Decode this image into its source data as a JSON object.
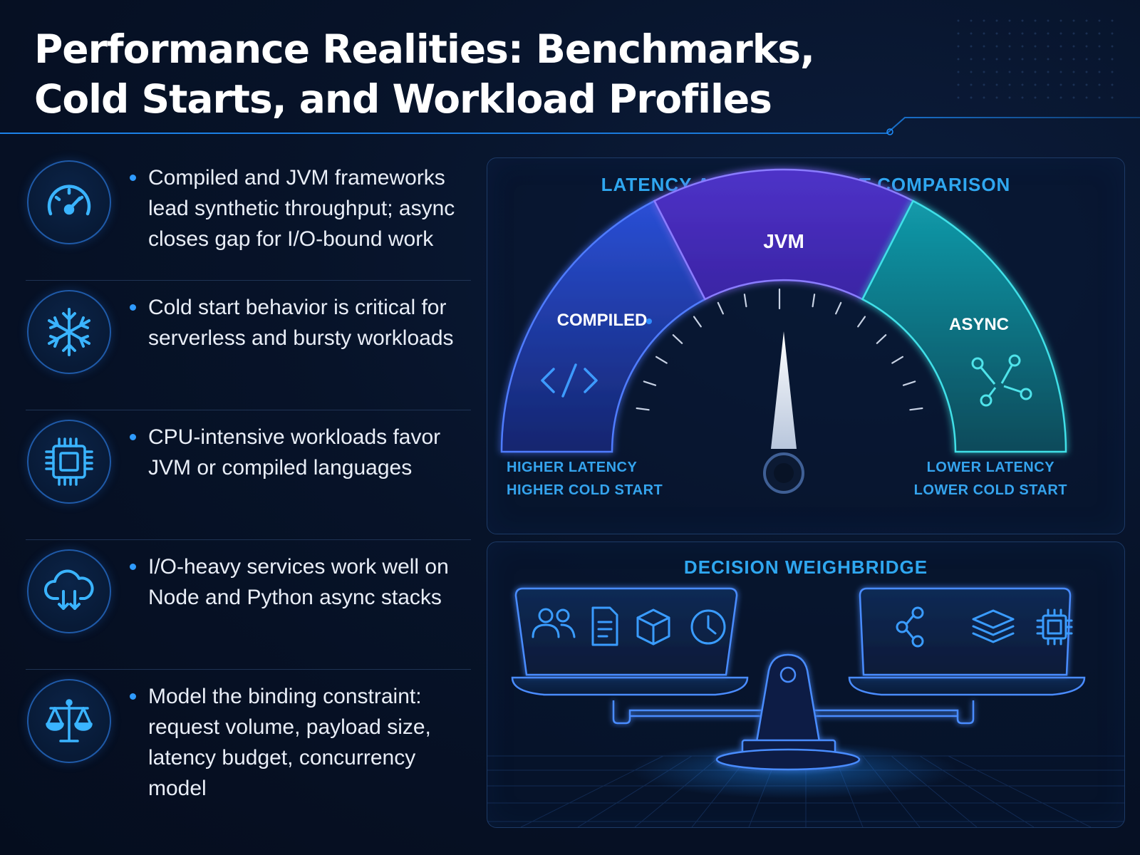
{
  "header": {
    "title_line1": "Performance Realities: Benchmarks,",
    "title_line2": "Cold Starts, and Workload Profiles"
  },
  "points": [
    {
      "icon": "speedometer-icon",
      "text": "Compiled and JVM frameworks lead synthetic throughput; async closes gap for I/O-bound work"
    },
    {
      "icon": "snowflake-icon",
      "text": "Cold start behavior is critical for serverless and bursty workloads"
    },
    {
      "icon": "cpu-chip-icon",
      "text": "CPU-intensive workloads favor JVM or compiled languages"
    },
    {
      "icon": "cloud-download-icon",
      "text": "I/O-heavy services work well on Node and Python async stacks"
    },
    {
      "icon": "balance-scale-icon",
      "text": "Model the binding constraint: request volume, payload size, latency budget, concurrency model"
    }
  ],
  "gauge": {
    "title": "LATENCY AND COLD-START COMPARISON",
    "segments": [
      {
        "label": "COMPILED",
        "icon": "code-brackets-icon",
        "color": "#1e3fb0"
      },
      {
        "label": "JVM",
        "color": "#4a2fc0"
      },
      {
        "label": "ASYNC",
        "icon": "network-nodes-icon",
        "color": "#0f7f95"
      }
    ],
    "left_label_line1": "HIGHER LATENCY",
    "left_label_line2": "HIGHER COLD START",
    "right_label_line1": "LOWER LATENCY",
    "right_label_line2": "LOWER COLD START"
  },
  "weighbridge": {
    "title": "DECISION WEIGHBRIDGE",
    "left_pan_icons": [
      "users-icon",
      "document-icon",
      "package-cube-icon",
      "clock-icon"
    ],
    "right_pan_icons": [
      "share-nodes-icon",
      "layers-icon",
      "cpu-chip-icon"
    ]
  },
  "colors": {
    "accent": "#2fa7f0",
    "background": "#061024",
    "compiled": "#1e3fb0",
    "jvm": "#4a2fc0",
    "async": "#0f7f95"
  }
}
